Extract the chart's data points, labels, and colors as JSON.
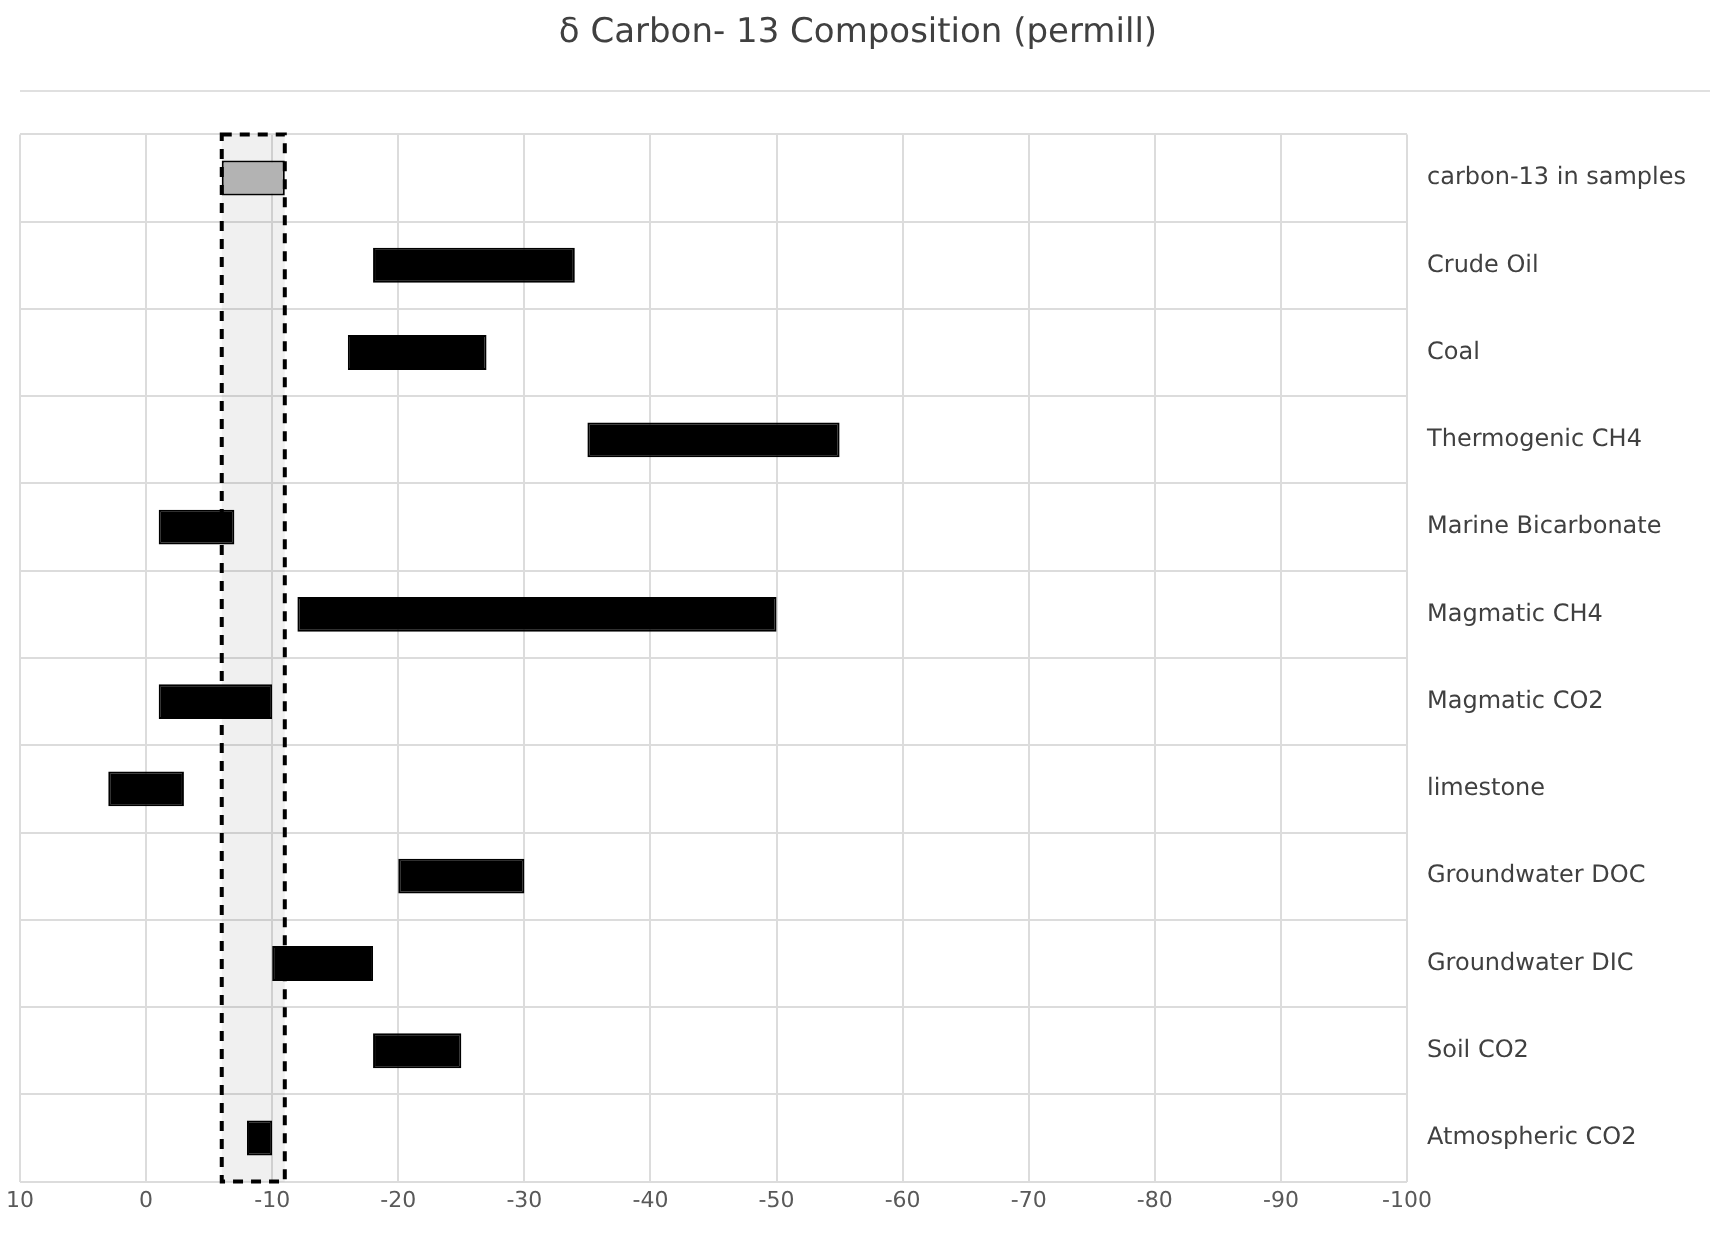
{
  "chart_data": {
    "type": "bar",
    "orientation": "horizontal",
    "title": "δ Carbon- 13 Composition (permill)",
    "categories": [
      "carbon-13 in samples",
      "Crude Oil",
      "Coal",
      "Thermogenic CH4",
      "Marine Bicarbonate",
      "Magmatic CH4",
      "Magmatic CO2",
      "limestone",
      "Groundwater DOC",
      "Groundwater DIC",
      "Soil CO2",
      "Atmospheric CO2"
    ],
    "base": [
      -6,
      -18,
      -16,
      -35,
      -1,
      -12,
      -1,
      3,
      -20,
      -10,
      -18,
      -8
    ],
    "values": [
      -5,
      -16,
      -11,
      -20,
      -6,
      -38,
      -9,
      -6,
      -10,
      -8,
      -7,
      -2
    ],
    "colors": [
      "#bfbfbf",
      "#000000",
      "#000000",
      "#000000",
      "#000000",
      "#000000",
      "#000000",
      "#000000",
      "#000000",
      "#000000",
      "#000000",
      "#000000"
    ],
    "xlim": [
      10,
      -100
    ],
    "xticks": [
      10,
      0,
      -10,
      -20,
      -30,
      -40,
      -50,
      -60,
      -70,
      -80,
      -90,
      -100
    ],
    "bands": [
      {
        "axis": "x",
        "from": -6,
        "to": -11,
        "color": "#000000"
      }
    ],
    "grid": true,
    "legend": false
  }
}
